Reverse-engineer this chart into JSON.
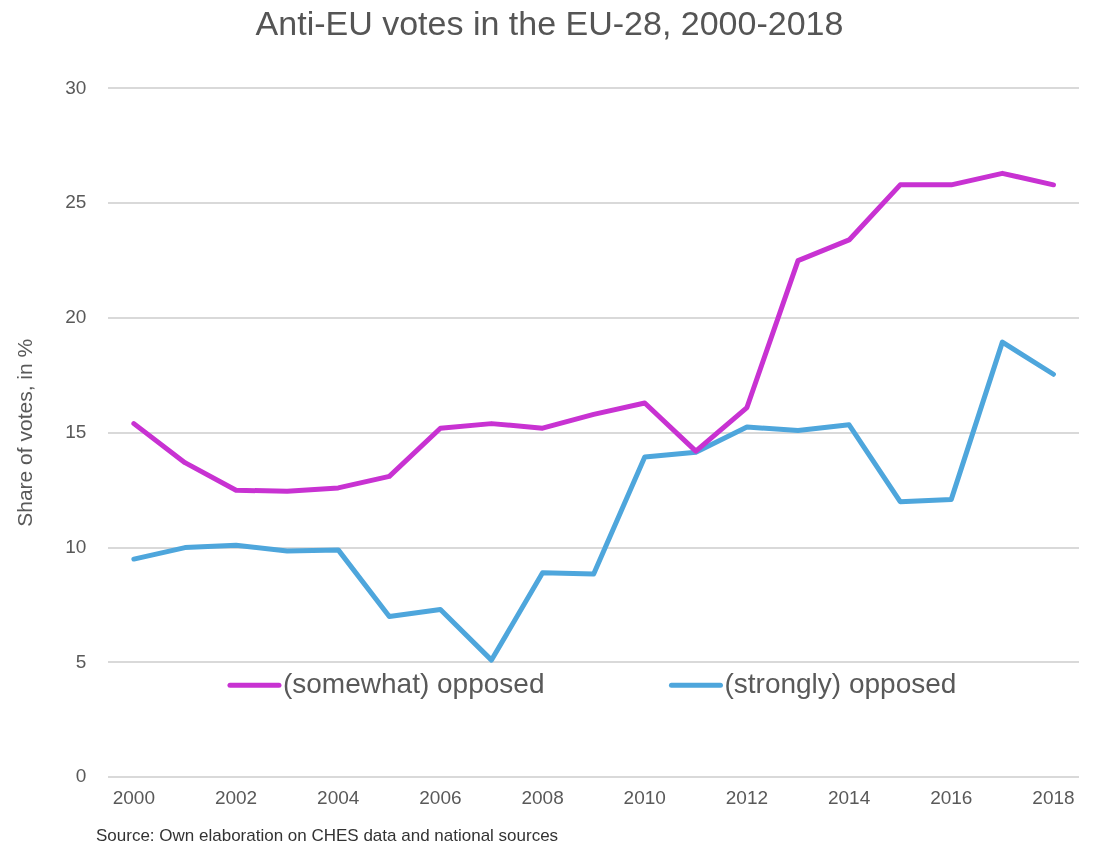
{
  "chart_data": {
    "type": "line",
    "title": "Anti-EU votes in the EU-28, 2000-2018",
    "ylabel": "Share of votes, in %",
    "categories": [
      "2000",
      null,
      "2002",
      null,
      "2004",
      null,
      "2006",
      null,
      "2008",
      null,
      "2010",
      null,
      "2012",
      null,
      "2014",
      null,
      "2016",
      null,
      "2018"
    ],
    "series": [
      {
        "name": "(somewhat) opposed",
        "color": "#c832d2",
        "values": [
          15.4,
          13.7,
          12.5,
          12.45,
          12.6,
          13.1,
          15.2,
          15.4,
          15.2,
          15.8,
          16.3,
          14.2,
          16.1,
          22.5,
          23.4,
          25.8,
          25.8,
          26.3,
          25.8
        ]
      },
      {
        "name": "(strongly) opposed",
        "color": "#4ea6dc",
        "values": [
          9.5,
          10.0,
          10.1,
          9.85,
          9.9,
          7.0,
          7.3,
          5.1,
          8.9,
          8.85,
          13.95,
          14.15,
          15.25,
          15.1,
          15.35,
          12.0,
          12.1,
          18.95,
          17.55
        ]
      }
    ],
    "ylim": [
      0,
      30
    ],
    "yticks": [
      0,
      5,
      10,
      15,
      20,
      25,
      30
    ],
    "grid": "y",
    "legend": "bottom",
    "marker": "none",
    "line_style": "solid",
    "annotations": [
      "Source: Own elaboration on CHES data and national sources"
    ]
  }
}
